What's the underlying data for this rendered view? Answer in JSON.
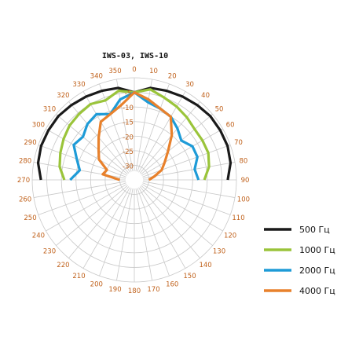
{
  "chart_data": {
    "type": "polar-line",
    "title": "IWS-03, IWS-10",
    "angle_unit": "deg",
    "angles": [
      0,
      10,
      20,
      30,
      40,
      50,
      60,
      70,
      80,
      90,
      100,
      110,
      120,
      130,
      140,
      150,
      160,
      170,
      180,
      190,
      200,
      210,
      220,
      230,
      240,
      250,
      260,
      270,
      280,
      290,
      300,
      310,
      320,
      330,
      340,
      350
    ],
    "angle_labels": [
      "0",
      "10",
      "20",
      "30",
      "40",
      "50",
      "60",
      "70",
      "80",
      "90",
      "100",
      "110",
      "120",
      "130",
      "140",
      "150",
      "160",
      "170",
      "180",
      "190",
      "200",
      "210",
      "220",
      "230",
      "240",
      "250",
      "260",
      "270",
      "280",
      "290",
      "300",
      "310",
      "320",
      "330",
      "340",
      "350"
    ],
    "r_ticks": [
      "-5",
      "-10",
      "-15",
      "-20",
      "-25",
      "-30"
    ],
    "r_tick_values": [
      -5,
      -10,
      -15,
      -20,
      -25,
      -30
    ],
    "r_range": [
      -35,
      0
    ],
    "grid": true,
    "legend_position": "right",
    "series": [
      {
        "name": "500 Гц",
        "color": "#1a1a1a",
        "x": [
          -90,
          -80,
          -70,
          -60,
          -50,
          -40,
          -30,
          -20,
          -10,
          0,
          10,
          20,
          30,
          40,
          50,
          60,
          70,
          80,
          90
        ],
        "values": [
          -3,
          -1.5,
          -1,
          -1,
          -1,
          -1.5,
          -2,
          -2.5,
          -3,
          -5,
          -3,
          -2.5,
          -2,
          -1.5,
          -1,
          -1,
          -1,
          -1.5,
          -3
        ]
      },
      {
        "name": "1000 Гц",
        "color": "#9ac43a",
        "x": [
          -90,
          -80,
          -70,
          -60,
          -50,
          -40,
          -30,
          -20,
          -10,
          0,
          10,
          20,
          30,
          40,
          50,
          60,
          70,
          80,
          90
        ],
        "values": [
          -11,
          -9,
          -8,
          -7,
          -6,
          -5.5,
          -5,
          -6,
          -4,
          -5,
          -3.5,
          -5,
          -6,
          -7,
          -8,
          -8,
          -8,
          -9,
          -11
        ]
      },
      {
        "name": "2000 Гц",
        "color": "#1e9bd7",
        "x": [
          -90,
          -80,
          -70,
          -60,
          -50,
          -40,
          -30,
          -20,
          -10,
          0,
          10,
          20,
          30,
          40,
          50,
          60,
          70,
          80,
          90
        ],
        "values": [
          -13,
          -16,
          -14,
          -11,
          -12,
          -10,
          -9,
          -11,
          -7,
          -5,
          -8,
          -9,
          -10,
          -12,
          -14,
          -12,
          -12,
          -14,
          -13
        ]
      },
      {
        "name": "4000 Гц",
        "color": "#e8812c",
        "x": [
          -90,
          -80,
          -70,
          -60,
          -50,
          -40,
          -30,
          -20,
          -10,
          0,
          10,
          20,
          30,
          40,
          50,
          60,
          70,
          80,
          90
        ],
        "values": [
          -30,
          -24,
          -25,
          -21,
          -19,
          -16,
          -12,
          -11,
          -9,
          -5,
          -7,
          -9,
          -10,
          -15,
          -20,
          -23,
          -25,
          -28,
          -30
        ]
      }
    ]
  }
}
